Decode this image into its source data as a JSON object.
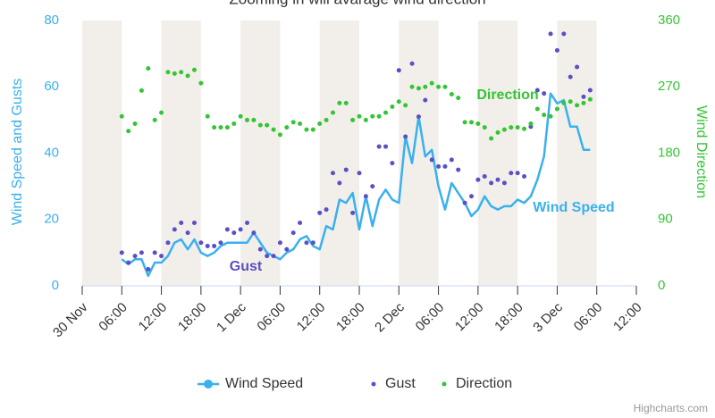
{
  "chart_data": {
    "type": "line",
    "title": "Zooming in will avarage wind direction",
    "y_label": "Wind Speed and Gusts",
    "y2_label": "Wind Direction",
    "x": [
      6,
      7,
      8,
      9,
      10,
      11,
      12,
      13,
      14,
      15,
      16,
      17,
      18,
      19,
      20,
      21,
      22,
      23,
      24,
      25,
      26,
      27,
      28,
      29,
      30,
      31,
      32,
      33,
      34,
      35,
      36,
      37,
      38,
      39,
      40,
      41,
      42,
      43,
      44,
      45,
      46,
      47,
      48,
      49,
      50,
      51,
      52,
      53,
      54,
      55,
      56,
      57,
      58,
      59,
      60,
      61,
      62,
      63,
      64,
      65,
      66,
      67,
      68,
      69,
      70,
      71,
      72,
      73,
      74,
      75,
      76,
      77
    ],
    "xlim": [
      0,
      84
    ],
    "xticks": [
      {
        "value": 0,
        "label": "30 Nov"
      },
      {
        "value": 6,
        "label": "06:00"
      },
      {
        "value": 12,
        "label": "12:00"
      },
      {
        "value": 18,
        "label": "18:00"
      },
      {
        "value": 24,
        "label": "1 Dec"
      },
      {
        "value": 30,
        "label": "06:00"
      },
      {
        "value": 36,
        "label": "12:00"
      },
      {
        "value": 42,
        "label": "18:00"
      },
      {
        "value": 48,
        "label": "2 Dec"
      },
      {
        "value": 54,
        "label": "06:00"
      },
      {
        "value": 60,
        "label": "12:00"
      },
      {
        "value": 66,
        "label": "18:00"
      },
      {
        "value": 72,
        "label": "3 Dec"
      },
      {
        "value": 78,
        "label": "06:00"
      },
      {
        "value": 84,
        "label": "12:00"
      }
    ],
    "ylim": [
      0,
      80
    ],
    "yticks": [
      0,
      20,
      40,
      60,
      80
    ],
    "y2lim": [
      0,
      360
    ],
    "y2ticks": [
      0,
      90,
      180,
      270,
      360
    ],
    "series": [
      {
        "name": "Wind Speed",
        "type": "line",
        "color": "#3ab0ee",
        "values": [
          8,
          6.5,
          8,
          8,
          3,
          7,
          7,
          9,
          13,
          14,
          11,
          14,
          10,
          9,
          10,
          12,
          13,
          13,
          13,
          13,
          16,
          13,
          10,
          9,
          8,
          10,
          11,
          14,
          15,
          12,
          11,
          18,
          17,
          26,
          25,
          28,
          17,
          27,
          18,
          26,
          29,
          26,
          25,
          45,
          37,
          51,
          39,
          41,
          30,
          23,
          31,
          28,
          25,
          21,
          23,
          27,
          24,
          23,
          24,
          24,
          26,
          25,
          27,
          32,
          39,
          58,
          55,
          56,
          48,
          48,
          41,
          41
        ]
      },
      {
        "name": "Gust",
        "type": "scatter",
        "color": "#5a4fc4",
        "values": [
          10,
          7,
          9,
          10,
          5,
          10,
          9,
          13,
          17,
          19,
          16,
          19,
          13,
          12,
          12,
          13,
          17,
          16,
          17,
          19,
          16,
          11,
          9,
          9,
          13,
          11,
          16,
          19,
          13,
          13,
          22,
          23,
          34,
          31,
          35,
          22,
          34,
          27,
          30,
          42,
          42,
          37,
          65,
          45,
          67,
          51,
          56,
          38,
          36,
          36,
          38,
          35,
          25,
          27,
          32,
          33,
          31,
          32,
          31,
          34,
          34,
          33,
          48,
          59,
          58,
          76,
          71,
          76,
          63,
          66,
          57,
          59
        ]
      },
      {
        "name": "Direction",
        "type": "scatter",
        "axis": "y2",
        "color": "#33c533",
        "values": [
          230,
          210,
          220,
          265,
          295,
          225,
          235,
          290,
          288,
          290,
          285,
          293,
          275,
          230,
          215,
          215,
          215,
          220,
          230,
          225,
          225,
          218,
          218,
          212,
          205,
          215,
          222,
          220,
          212,
          212,
          220,
          225,
          235,
          248,
          248,
          225,
          230,
          225,
          230,
          230,
          235,
          243,
          250,
          245,
          270,
          268,
          270,
          275,
          270,
          270,
          260,
          255,
          222,
          222,
          220,
          215,
          200,
          208,
          212,
          215,
          215,
          213,
          220,
          240,
          232,
          230,
          240,
          248,
          250,
          245,
          248,
          253
        ]
      }
    ],
    "annotations": [
      {
        "text": "Direction",
        "series": 2
      },
      {
        "text": "Wind Speed",
        "series": 0
      },
      {
        "text": "Gust",
        "series": 1
      }
    ],
    "alternate_bands": true,
    "credits": "Highcharts.com"
  }
}
